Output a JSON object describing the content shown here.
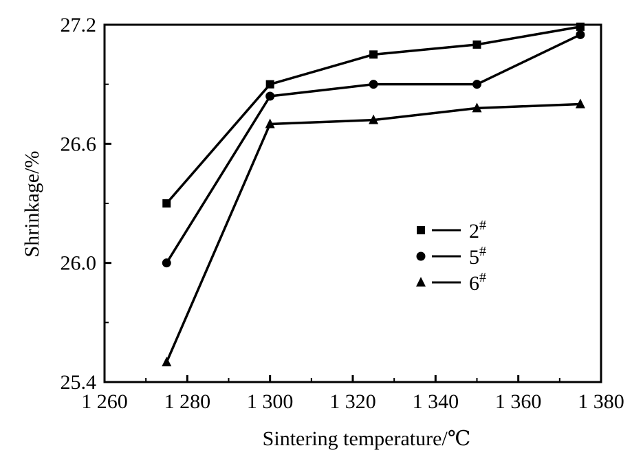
{
  "chart_data": {
    "type": "line",
    "title": "",
    "xlabel": "Sintering temperature/℃",
    "ylabel": "Shrinkage/%",
    "xlim": [
      1260,
      1380
    ],
    "ylim": [
      25.4,
      27.2
    ],
    "xticks": [
      1260,
      1280,
      1300,
      1320,
      1340,
      1360,
      1380
    ],
    "xtick_labels": [
      "1 260",
      "1 280",
      "1 300",
      "1 320",
      "1 340",
      "1 360",
      "1 380"
    ],
    "yticks": [
      25.4,
      26.0,
      26.6,
      27.2
    ],
    "ytick_labels": [
      "25.4",
      "26.0",
      "26.6",
      "27.2"
    ],
    "grid": false,
    "legend_position": "center-right",
    "x": [
      1275,
      1300,
      1325,
      1350,
      1375
    ],
    "series": [
      {
        "name": "2",
        "name_sup": "#",
        "marker": "square",
        "values": [
          26.3,
          26.9,
          27.05,
          27.1,
          27.19
        ]
      },
      {
        "name": "5",
        "name_sup": "#",
        "marker": "circle",
        "values": [
          26.0,
          26.84,
          26.9,
          26.9,
          27.15
        ]
      },
      {
        "name": "6",
        "name_sup": "#",
        "marker": "triangle",
        "values": [
          25.5,
          26.7,
          26.72,
          26.78,
          26.8
        ]
      }
    ]
  }
}
